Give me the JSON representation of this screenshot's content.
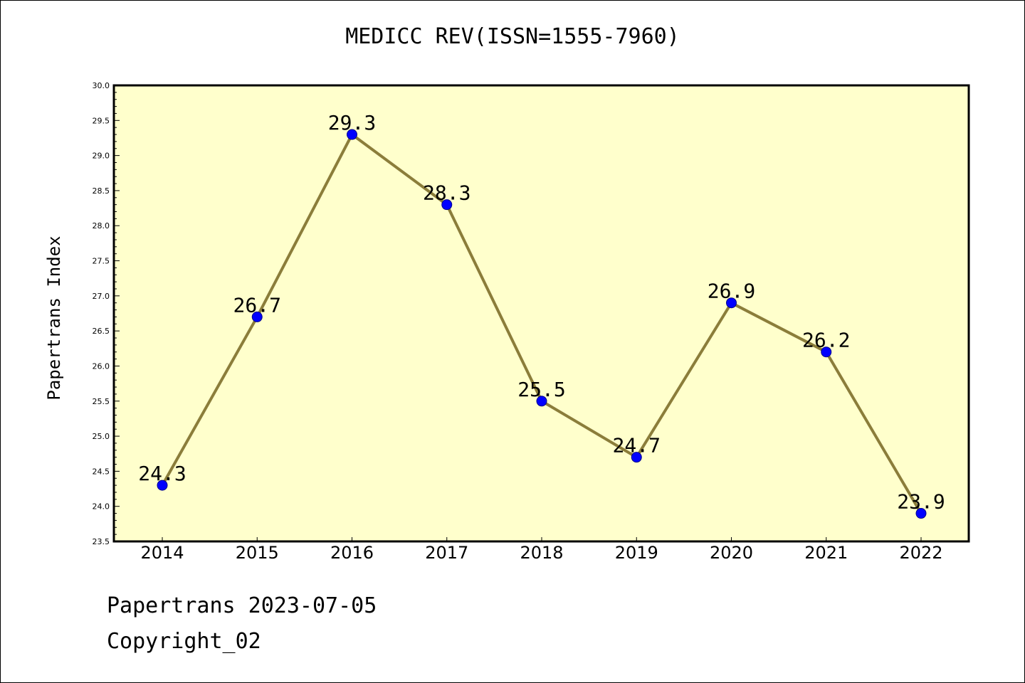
{
  "chart_data": {
    "type": "line",
    "title": "MEDICC REV(ISSN=1555-7960)",
    "xlabel": "",
    "ylabel": "Papertrans Index",
    "categories": [
      "2014",
      "2015",
      "2016",
      "2017",
      "2018",
      "2019",
      "2020",
      "2021",
      "2022"
    ],
    "series": [
      {
        "values": [
          24.3,
          26.7,
          29.3,
          28.3,
          25.5,
          24.7,
          26.9,
          26.2,
          23.9
        ],
        "labels": [
          "24.3",
          "26.7",
          "29.3",
          "28.3",
          "25.5",
          "24.7",
          "26.9",
          "26.2",
          "23.9"
        ]
      }
    ],
    "ylim": [
      23.5,
      30.0
    ],
    "yticks": [
      "23.5",
      "24.0",
      "24.5",
      "25.0",
      "25.5",
      "26.0",
      "26.5",
      "27.0",
      "27.5",
      "28.0",
      "28.5",
      "29.0",
      "29.5",
      "30.0"
    ],
    "grid": false,
    "colors": {
      "plot_background": "#ffffcc",
      "line": "#8b7d3a",
      "marker": "#0000ff",
      "marker_edge": "#00008b"
    }
  },
  "footer": {
    "line1": "Papertrans 2023-07-05",
    "line2": "Copyright_02"
  }
}
